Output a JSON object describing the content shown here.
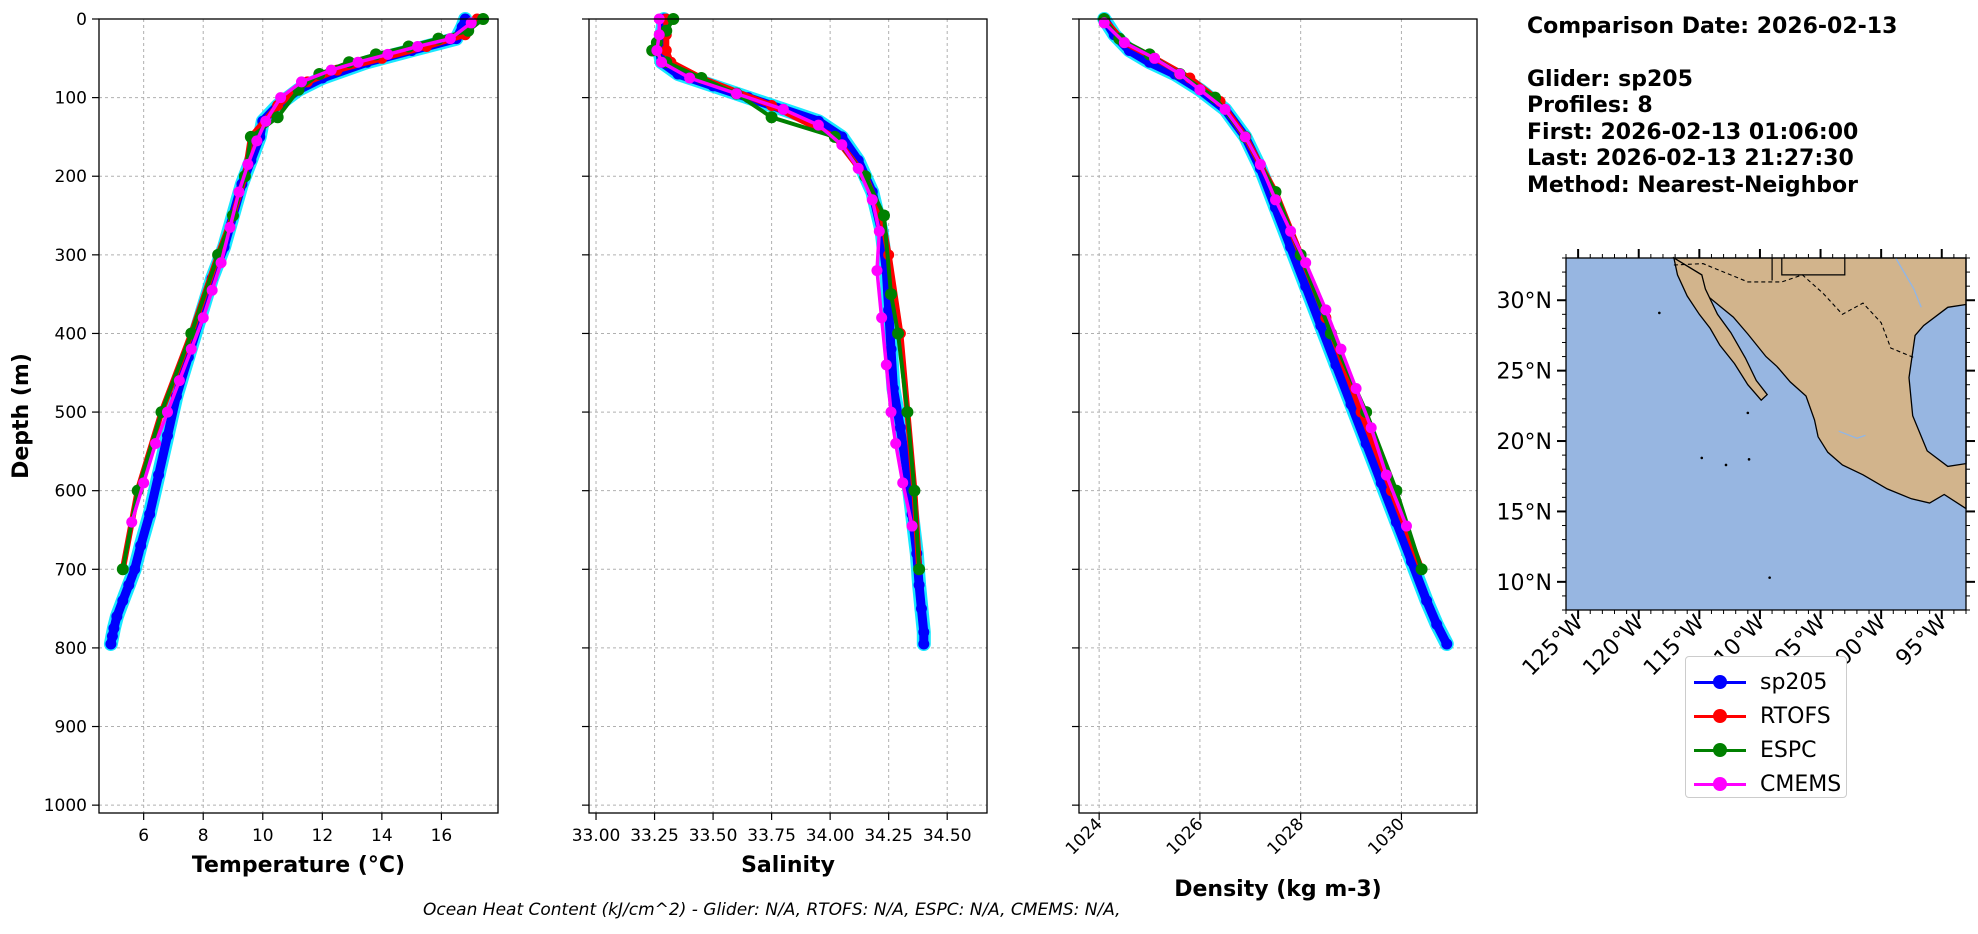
{
  "colors": {
    "sp205": "#0000ff",
    "sp205_halo": "#00e5ff",
    "RTOFS": "#ff0000",
    "ESPC": "#008000",
    "CMEMS": "#ff00ff",
    "ocean": "#97b6e1",
    "land": "#d2b48c",
    "grid": "#b0b0b0"
  },
  "chart_data": [
    {
      "type": "line",
      "title": "",
      "xlabel": "Temperature (°C)",
      "ylabel": "Depth (m)",
      "xlim": [
        4.5,
        17.9
      ],
      "ylim": [
        1010,
        0
      ],
      "xticks": [
        "6",
        "8",
        "10",
        "12",
        "14",
        "16"
      ],
      "xtick_values": [
        6,
        8,
        10,
        12,
        14,
        16
      ],
      "yticks": [
        "0",
        "100",
        "200",
        "300",
        "400",
        "500",
        "600",
        "700",
        "800",
        "900",
        "1000"
      ],
      "ytick_values": [
        0,
        100,
        200,
        300,
        400,
        500,
        600,
        700,
        800,
        900,
        1000
      ],
      "grid": true,
      "series": [
        {
          "name": "sp205",
          "x": [
            16.8,
            16.7,
            16.5,
            15.0,
            13.5,
            12.0,
            11.2,
            10.5,
            10.0,
            9.9,
            9.6,
            9.3,
            9.0,
            8.7,
            8.3,
            7.9,
            7.5,
            7.1,
            6.8,
            6.5,
            6.2,
            5.9,
            5.7,
            5.5,
            5.3,
            5.1,
            5.0,
            4.95,
            4.9
          ],
          "y": [
            0,
            10,
            25,
            40,
            55,
            75,
            90,
            110,
            130,
            150,
            180,
            210,
            250,
            290,
            330,
            380,
            430,
            480,
            530,
            580,
            630,
            670,
            700,
            720,
            740,
            760,
            775,
            785,
            795
          ]
        },
        {
          "name": "RTOFS",
          "x": [
            17.2,
            16.8,
            15.5,
            14.0,
            12.5,
            11.5,
            10.5,
            9.6,
            9.4,
            9.0,
            8.5,
            7.6,
            6.6,
            5.8,
            5.3
          ],
          "y": [
            0,
            20,
            35,
            50,
            65,
            80,
            110,
            150,
            200,
            250,
            300,
            400,
            500,
            600,
            700
          ]
        },
        {
          "name": "ESPC",
          "x": [
            17.4,
            16.9,
            15.9,
            14.9,
            13.8,
            12.9,
            11.9,
            11.2,
            10.5,
            9.6,
            9.4,
            9.0,
            8.5,
            7.6,
            6.6,
            5.8,
            5.3
          ],
          "y": [
            0,
            15,
            25,
            35,
            45,
            55,
            70,
            90,
            125,
            150,
            200,
            250,
            300,
            400,
            500,
            600,
            700
          ]
        },
        {
          "name": "CMEMS",
          "x": [
            17.0,
            16.3,
            15.2,
            14.2,
            13.2,
            12.3,
            11.3,
            10.6,
            10.1,
            9.8,
            9.5,
            9.2,
            8.9,
            8.6,
            8.3,
            8.0,
            7.6,
            7.2,
            6.8,
            6.4,
            6.0,
            5.6
          ],
          "y": [
            5,
            25,
            35,
            45,
            55,
            65,
            80,
            100,
            130,
            155,
            185,
            220,
            265,
            310,
            345,
            380,
            420,
            460,
            500,
            540,
            590,
            640
          ]
        }
      ]
    },
    {
      "type": "line",
      "title": "",
      "xlabel": "Salinity",
      "ylabel": "",
      "xlim": [
        32.97,
        34.67
      ],
      "ylim": [
        1010,
        0
      ],
      "xticks": [
        "33.00",
        "33.25",
        "33.50",
        "33.75",
        "34.00",
        "34.25",
        "34.50"
      ],
      "xtick_values": [
        33.0,
        33.25,
        33.5,
        33.75,
        34.0,
        34.25,
        34.5
      ],
      "yticks": [],
      "grid": true,
      "series": [
        {
          "name": "sp205",
          "x": [
            33.29,
            33.28,
            33.27,
            33.28,
            33.35,
            33.5,
            33.65,
            33.8,
            33.95,
            34.05,
            34.12,
            34.18,
            34.22,
            34.24,
            34.25,
            34.26,
            34.27,
            34.3,
            34.33,
            34.35,
            34.37,
            34.38,
            34.39,
            34.4,
            34.4
          ],
          "y": [
            0,
            20,
            40,
            55,
            70,
            85,
            100,
            115,
            130,
            150,
            180,
            220,
            270,
            320,
            370,
            420,
            470,
            520,
            580,
            630,
            680,
            720,
            750,
            780,
            795
          ]
        },
        {
          "name": "RTOFS",
          "x": [
            33.3,
            33.3,
            33.3,
            33.32,
            33.45,
            33.75,
            34.02,
            34.15,
            34.22,
            34.25,
            34.3,
            34.33,
            34.36,
            34.38
          ],
          "y": [
            0,
            20,
            40,
            55,
            75,
            110,
            150,
            200,
            250,
            300,
            400,
            500,
            600,
            700
          ]
        },
        {
          "name": "ESPC",
          "x": [
            33.33,
            33.3,
            33.26,
            33.24,
            33.3,
            33.45,
            33.6,
            33.75,
            34.02,
            34.15,
            34.23,
            34.26,
            34.29,
            34.33,
            34.36,
            34.38
          ],
          "y": [
            0,
            15,
            30,
            40,
            55,
            75,
            95,
            125,
            150,
            200,
            250,
            350,
            400,
            500,
            600,
            700
          ]
        },
        {
          "name": "CMEMS",
          "x": [
            33.27,
            33.27,
            33.26,
            33.28,
            33.4,
            33.6,
            33.8,
            33.95,
            34.05,
            34.12,
            34.18,
            34.21,
            34.2,
            34.22,
            34.24,
            34.26,
            34.28,
            34.31,
            34.35
          ],
          "y": [
            0,
            20,
            40,
            55,
            75,
            95,
            115,
            135,
            160,
            190,
            230,
            270,
            320,
            380,
            440,
            500,
            540,
            590,
            645
          ]
        }
      ]
    },
    {
      "type": "line",
      "title": "",
      "xlabel": "Density (kg m-3)",
      "ylabel": "",
      "xlim": [
        1023.6,
        1031.5
      ],
      "ylim": [
        1010,
        0
      ],
      "xticks": [
        "1024",
        "1026",
        "1028",
        "1030"
      ],
      "xtick_values": [
        1024,
        1026,
        1028,
        1030
      ],
      "yticks": [],
      "grid": true,
      "series": [
        {
          "name": "sp205",
          "x": [
            1024.1,
            1024.3,
            1024.6,
            1025.0,
            1025.5,
            1026.0,
            1026.5,
            1026.9,
            1027.2,
            1027.5,
            1027.8,
            1028.1,
            1028.4,
            1028.7,
            1029.0,
            1029.3,
            1029.6,
            1029.9,
            1030.2,
            1030.5,
            1030.7,
            1030.9
          ],
          "y": [
            0,
            20,
            40,
            55,
            70,
            90,
            115,
            150,
            190,
            240,
            290,
            340,
            390,
            440,
            490,
            540,
            590,
            640,
            690,
            740,
            770,
            795
          ]
        },
        {
          "name": "RTOFS",
          "x": [
            1024.1,
            1024.5,
            1025.1,
            1025.8,
            1026.4,
            1026.9,
            1027.5,
            1028.0,
            1028.5,
            1029.2,
            1029.8,
            1030.4
          ],
          "y": [
            0,
            30,
            50,
            75,
            105,
            150,
            220,
            300,
            380,
            500,
            600,
            700
          ]
        },
        {
          "name": "ESPC",
          "x": [
            1024.1,
            1024.4,
            1025.0,
            1025.6,
            1026.3,
            1026.9,
            1027.5,
            1028.0,
            1028.6,
            1029.3,
            1029.9,
            1030.4
          ],
          "y": [
            0,
            25,
            45,
            70,
            100,
            150,
            220,
            300,
            400,
            500,
            600,
            700
          ]
        },
        {
          "name": "CMEMS",
          "x": [
            1024.1,
            1024.5,
            1025.1,
            1025.6,
            1026.0,
            1026.5,
            1026.9,
            1027.2,
            1027.5,
            1027.8,
            1028.1,
            1028.5,
            1028.8,
            1029.1,
            1029.4,
            1029.7,
            1030.1
          ],
          "y": [
            5,
            30,
            50,
            70,
            90,
            115,
            150,
            185,
            230,
            270,
            310,
            370,
            420,
            470,
            520,
            580,
            645
          ]
        }
      ]
    },
    {
      "type": "map",
      "lat_range": [
        8,
        33
      ],
      "lon_range": [
        -126,
        -93
      ],
      "lat_labels": [
        "30°N",
        "25°N",
        "20°N",
        "15°N",
        "10°N"
      ],
      "lat_values": [
        30,
        25,
        20,
        15,
        10
      ],
      "lon_labels": [
        "125°W",
        "120°W",
        "115°W",
        "110°W",
        "105°W",
        "100°W",
        "95°W"
      ],
      "lon_values": [
        -125,
        -120,
        -115,
        -110,
        -105,
        -100,
        -95
      ]
    }
  ],
  "info": {
    "comparison_date": "Comparison Date: 2026-02-13",
    "glider": "Glider: sp205",
    "profiles": "Profiles: 8",
    "first": "First: 2026-02-13 01:06:00",
    "last": "Last: 2026-02-13 21:27:30",
    "method": "Method: Nearest-Neighbor"
  },
  "legend": [
    {
      "key": "sp205",
      "label": "sp205"
    },
    {
      "key": "RTOFS",
      "label": "RTOFS"
    },
    {
      "key": "ESPC",
      "label": "ESPC"
    },
    {
      "key": "CMEMS",
      "label": "CMEMS"
    }
  ],
  "footer": {
    "ohc": "Ocean Heat Content (kJ/cm^2) - Glider: N/A,  RTOFS: N/A,  ESPC: N/A,  CMEMS: N/A,"
  }
}
